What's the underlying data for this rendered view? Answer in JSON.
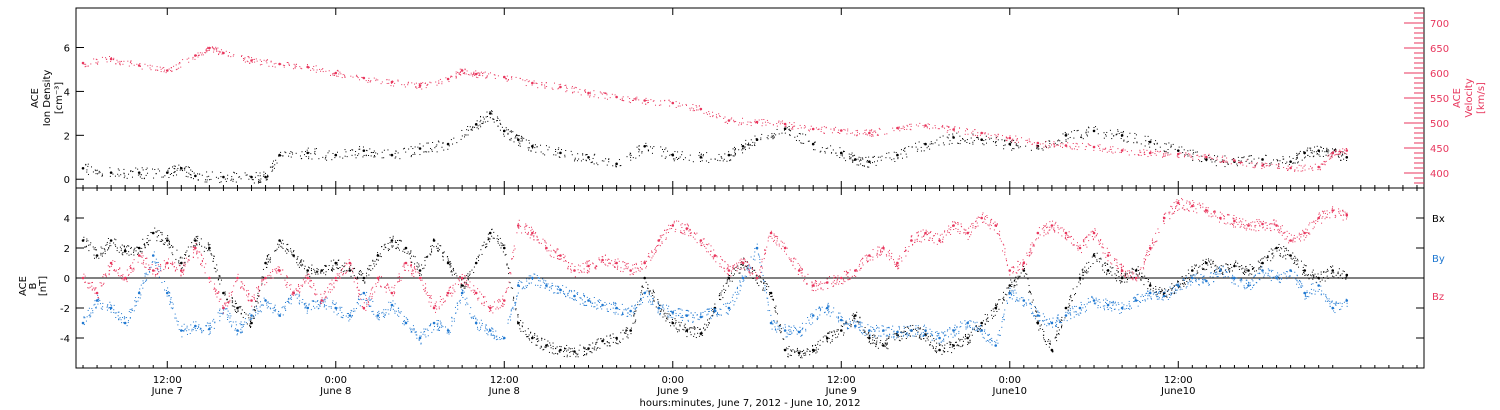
{
  "colors": {
    "black": "#000000",
    "pink": "#e8365d",
    "blue": "#1f78d1"
  },
  "chart_data": [
    {
      "type": "scatter",
      "panel": "top",
      "x_units": "hours since 2012-06-07 00:00 UT",
      "xlim": [
        5.5,
        101.5
      ],
      "ylabel": [
        "ACE",
        "Ion Density",
        "[cm⁻³]"
      ],
      "ylabel_right": [
        "ACE",
        "Velocity",
        "[km/s]"
      ],
      "ylim": [
        -0.4,
        7.8
      ],
      "y_ticks": [
        0,
        2,
        4,
        6
      ],
      "ylim_right": [
        370,
        730
      ],
      "y_ticks_right": [
        400,
        450,
        500,
        550,
        600,
        650,
        700
      ],
      "series": [
        {
          "color": "#000000",
          "axis": "left",
          "x": [
            6,
            8,
            10,
            12,
            13,
            14,
            16,
            18,
            19,
            20,
            22,
            24,
            26,
            28,
            30,
            32,
            34,
            35,
            36,
            37,
            38,
            40,
            42,
            44,
            46,
            48,
            50,
            52,
            53,
            54,
            56,
            58,
            60,
            61,
            62,
            64,
            66,
            68,
            70,
            72,
            74,
            76,
            78,
            80,
            82,
            84,
            86,
            88,
            90,
            92,
            93,
            94,
            95,
            96
          ],
          "y": [
            0.5,
            0.3,
            0.3,
            0.3,
            0.5,
            0.15,
            0.1,
            0.1,
            0.1,
            1.1,
            1.2,
            1.1,
            1.3,
            1.1,
            1.4,
            1.6,
            2.5,
            3.0,
            2.2,
            1.8,
            1.5,
            1.2,
            1.0,
            0.7,
            1.5,
            1.1,
            1.0,
            1.1,
            1.5,
            1.8,
            2.3,
            1.6,
            1.2,
            0.9,
            0.8,
            1.1,
            1.6,
            1.9,
            1.8,
            1.6,
            1.5,
            2.0,
            2.2,
            2.0,
            1.7,
            1.3,
            0.9,
            0.8,
            0.9,
            0.8,
            1.2,
            1.3,
            1.2,
            1.0
          ]
        },
        {
          "color": "#e8365d",
          "axis": "right",
          "x": [
            6,
            8,
            10,
            12,
            14,
            15,
            16,
            18,
            20,
            22,
            24,
            26,
            28,
            30,
            32,
            33,
            34,
            36,
            38,
            40,
            42,
            44,
            46,
            48,
            50,
            52,
            54,
            56,
            58,
            60,
            62,
            64,
            66,
            68,
            70,
            72,
            74,
            76,
            78,
            80,
            82,
            84,
            86,
            88,
            90,
            92,
            94,
            95,
            96
          ],
          "y": [
            620,
            628,
            615,
            605,
            635,
            650,
            640,
            625,
            618,
            612,
            600,
            590,
            582,
            575,
            588,
            605,
            598,
            592,
            580,
            572,
            560,
            552,
            545,
            540,
            528,
            505,
            502,
            498,
            488,
            485,
            480,
            490,
            495,
            487,
            480,
            470,
            460,
            455,
            452,
            445,
            440,
            438,
            432,
            425,
            415,
            410,
            412,
            440,
            445
          ]
        }
      ]
    },
    {
      "type": "scatter",
      "panel": "bottom",
      "x_units": "hours since 2012-06-07 00:00 UT",
      "xlim": [
        5.5,
        101.5
      ],
      "ylabel": [
        "ACE",
        "B",
        "[nT]"
      ],
      "ylim": [
        -6,
        6
      ],
      "y_ticks": [
        -4,
        -2,
        0,
        2,
        4
      ],
      "zero_line": true,
      "legend": [
        "Bx",
        "By",
        "Bz"
      ],
      "legend_position": "right",
      "series": [
        {
          "name": "Bx",
          "color": "#000000",
          "x": [
            6,
            7,
            8,
            9,
            10,
            11,
            12,
            13,
            14,
            15,
            16,
            17,
            18,
            19,
            20,
            21,
            22,
            23,
            24,
            25,
            26,
            27,
            28,
            29,
            30,
            31,
            32,
            33,
            34,
            35,
            36,
            37,
            38,
            39,
            40,
            41,
            42,
            43,
            44,
            45,
            46,
            47,
            48,
            49,
            50,
            51,
            52,
            53,
            54,
            55,
            56,
            57,
            58,
            59,
            60,
            61,
            62,
            63,
            64,
            65,
            66,
            67,
            68,
            69,
            70,
            71,
            72,
            73,
            74,
            75,
            76,
            77,
            78,
            79,
            80,
            81,
            82,
            83,
            84,
            85,
            86,
            87,
            88,
            89,
            90,
            91,
            92,
            93,
            94,
            95,
            96
          ],
          "y": [
            2.5,
            1.5,
            2.5,
            1.8,
            2.0,
            3.0,
            2.5,
            1.0,
            2.5,
            2.0,
            -1.0,
            -2.0,
            -3.0,
            1.0,
            2.5,
            1.5,
            0.5,
            0.5,
            1.0,
            0.5,
            0.0,
            1.5,
            2.5,
            2.0,
            0.5,
            2.5,
            1.0,
            -0.5,
            1.0,
            3.0,
            2.0,
            -3.0,
            -4.0,
            -4.5,
            -4.8,
            -4.9,
            -4.7,
            -4.2,
            -4.0,
            -3.5,
            0.0,
            -2.0,
            -3.0,
            -3.5,
            -3.7,
            -2.0,
            0.0,
            1.0,
            0.0,
            -1.0,
            -4.8,
            -5.0,
            -4.8,
            -4.0,
            -3.5,
            -2.5,
            -4.0,
            -4.5,
            -3.8,
            -3.5,
            -3.8,
            -4.8,
            -4.5,
            -4.0,
            -3.0,
            -2.0,
            -0.5,
            0.5,
            -3.0,
            -4.8,
            -2.0,
            0.0,
            1.5,
            0.5,
            0.0,
            0.5,
            -0.5,
            -1.0,
            -0.5,
            0.5,
            1.0,
            0.5,
            0.8,
            0.5,
            1.0,
            2.0,
            1.5,
            0.5,
            0.0,
            0.5,
            0.2
          ]
        },
        {
          "name": "By",
          "color": "#1f78d1",
          "x": [
            6,
            7,
            8,
            9,
            10,
            11,
            12,
            13,
            14,
            15,
            16,
            17,
            18,
            19,
            20,
            21,
            22,
            23,
            24,
            25,
            26,
            27,
            28,
            29,
            30,
            31,
            32,
            33,
            34,
            35,
            36,
            37,
            38,
            39,
            40,
            41,
            42,
            43,
            44,
            45,
            46,
            47,
            48,
            49,
            50,
            51,
            52,
            53,
            54,
            55,
            56,
            57,
            58,
            59,
            60,
            61,
            62,
            63,
            64,
            65,
            66,
            67,
            68,
            69,
            70,
            71,
            72,
            73,
            74,
            75,
            76,
            77,
            78,
            79,
            80,
            81,
            82,
            83,
            84,
            85,
            86,
            87,
            88,
            89,
            90,
            91,
            92,
            93,
            94,
            95,
            96
          ],
          "y": [
            -3.0,
            -1.5,
            -2.0,
            -3.0,
            -1.0,
            1.5,
            -1.0,
            -3.5,
            -3.2,
            -3.4,
            -2.0,
            -3.5,
            -2.5,
            -1.5,
            -2.5,
            -1.0,
            -2.0,
            -1.5,
            -2.0,
            -2.5,
            -1.0,
            -2.5,
            -1.8,
            -3.0,
            -4.0,
            -3.0,
            -3.5,
            -1.0,
            -3.0,
            -3.5,
            -4.0,
            -0.5,
            0.0,
            -0.5,
            -0.8,
            -1.2,
            -1.5,
            -1.8,
            -2.0,
            -2.2,
            -1.0,
            -2.0,
            -2.3,
            -2.5,
            -2.6,
            -2.2,
            -2.0,
            0.0,
            2.0,
            -3.0,
            -3.5,
            -3.6,
            -2.5,
            -2.0,
            -2.8,
            -3.2,
            -3.5,
            -3.5,
            -3.6,
            -3.5,
            -3.5,
            -4.0,
            -3.5,
            -3.0,
            -3.5,
            -4.5,
            -1.0,
            -1.5,
            -2.5,
            -3.0,
            -2.5,
            -2.0,
            -1.5,
            -1.8,
            -2.0,
            -1.5,
            -1.0,
            -1.2,
            -0.5,
            0.0,
            -0.2,
            0.5,
            0.0,
            -0.5,
            0.5,
            0.0,
            0.5,
            -1.0,
            -0.5,
            -2.0,
            -1.5
          ]
        },
        {
          "name": "Bz",
          "color": "#e8365d",
          "x": [
            6,
            7,
            8,
            9,
            10,
            11,
            12,
            13,
            14,
            15,
            16,
            17,
            18,
            19,
            20,
            21,
            22,
            23,
            24,
            25,
            26,
            27,
            28,
            29,
            30,
            31,
            32,
            33,
            34,
            35,
            36,
            37,
            38,
            39,
            40,
            41,
            42,
            43,
            44,
            45,
            46,
            47,
            48,
            49,
            50,
            51,
            52,
            53,
            54,
            55,
            56,
            57,
            58,
            59,
            60,
            61,
            62,
            63,
            64,
            65,
            66,
            67,
            68,
            69,
            70,
            71,
            72,
            73,
            74,
            75,
            76,
            77,
            78,
            79,
            80,
            81,
            82,
            83,
            84,
            85,
            86,
            87,
            88,
            89,
            90,
            91,
            92,
            93,
            94,
            95,
            96
          ],
          "y": [
            0.0,
            -1.0,
            1.0,
            0.0,
            1.5,
            0.5,
            1.0,
            0.5,
            2.0,
            0.0,
            -2.0,
            0.0,
            -1.5,
            0.0,
            0.5,
            -1.0,
            0.0,
            -1.5,
            0.0,
            1.0,
            -2.0,
            0.0,
            -1.0,
            1.0,
            0.0,
            -2.0,
            -1.0,
            0.0,
            -1.0,
            -2.0,
            -1.5,
            3.5,
            3.0,
            2.0,
            1.5,
            0.5,
            0.8,
            1.2,
            1.0,
            0.5,
            1.0,
            2.5,
            3.5,
            3.3,
            2.5,
            1.5,
            0.5,
            1.0,
            0.0,
            3.0,
            2.0,
            0.5,
            -0.5,
            -0.3,
            0.0,
            0.5,
            1.5,
            2.0,
            1.0,
            2.5,
            3.0,
            2.5,
            3.5,
            3.0,
            4.0,
            3.5,
            0.5,
            1.0,
            3.0,
            3.5,
            3.0,
            2.0,
            3.0,
            1.5,
            0.5,
            0.0,
            2.0,
            4.0,
            5.0,
            4.8,
            4.5,
            4.0,
            3.8,
            3.5,
            3.6,
            3.5,
            2.5,
            3.0,
            4.0,
            4.5,
            4.2
          ]
        }
      ]
    }
  ],
  "x_axis": {
    "ticks": [
      {
        "hours": 12,
        "time": "12:00",
        "date": "June 7"
      },
      {
        "hours": 24,
        "time": "0:00",
        "date": "June 8"
      },
      {
        "hours": 36,
        "time": "12:00",
        "date": "June 8"
      },
      {
        "hours": 48,
        "time": "0:00",
        "date": "June 9"
      },
      {
        "hours": 60,
        "time": "12:00",
        "date": "June 9"
      },
      {
        "hours": 72,
        "time": "0:00",
        "date": "June10"
      },
      {
        "hours": 84,
        "time": "12:00",
        "date": "June10"
      }
    ],
    "title": "hours:minutes,  June  7, 2012 - June 10, 2012"
  },
  "top_panel": {
    "left_label_line1": "ACE",
    "left_label_line2": "Ion Density",
    "left_label_line3": "[cm⁻³]",
    "right_label_line1": "ACE",
    "right_label_line2": "Velocity",
    "right_label_line3": "[km/s]"
  },
  "bottom_panel": {
    "left_label_line1": "ACE",
    "left_label_line2": "B",
    "left_label_line3": "[nT]",
    "legend_bx": "Bx",
    "legend_by": "By",
    "legend_bz": "Bz"
  }
}
